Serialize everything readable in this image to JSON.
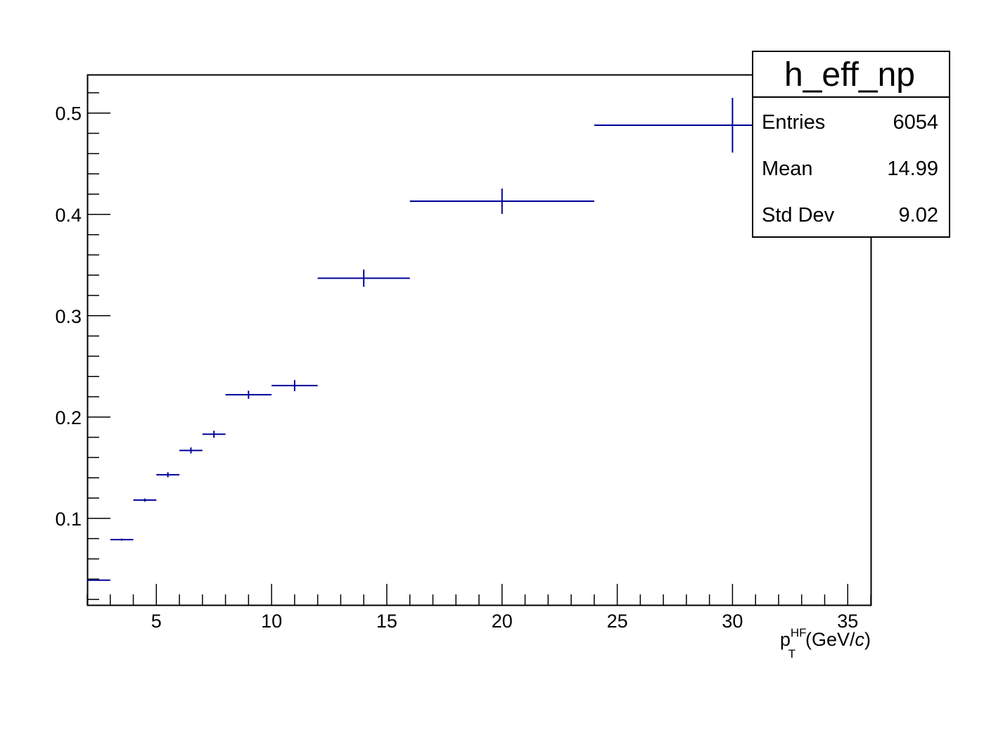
{
  "chart_data": {
    "type": "scatter",
    "style": "histogram-error-bars",
    "series": [
      {
        "color": "#000099",
        "points": [
          {
            "x": 2.5,
            "xlow": 2,
            "xhigh": 3,
            "y": 0.039,
            "yerr": 0.0006
          },
          {
            "x": 3.5,
            "xlow": 3,
            "xhigh": 4,
            "y": 0.079,
            "yerr": 0.001
          },
          {
            "x": 4.5,
            "xlow": 4,
            "xhigh": 5,
            "y": 0.118,
            "yerr": 0.0015
          },
          {
            "x": 5.5,
            "xlow": 5,
            "xhigh": 6,
            "y": 0.143,
            "yerr": 0.0025
          },
          {
            "x": 6.5,
            "xlow": 6,
            "xhigh": 7,
            "y": 0.167,
            "yerr": 0.003
          },
          {
            "x": 7.5,
            "xlow": 7,
            "xhigh": 8,
            "y": 0.183,
            "yerr": 0.0035
          },
          {
            "x": 9,
            "xlow": 8,
            "xhigh": 10,
            "y": 0.222,
            "yerr": 0.004
          },
          {
            "x": 11,
            "xlow": 10,
            "xhigh": 12,
            "y": 0.231,
            "yerr": 0.0055
          },
          {
            "x": 14,
            "xlow": 12,
            "xhigh": 16,
            "y": 0.337,
            "yerr": 0.0085
          },
          {
            "x": 20,
            "xlow": 16,
            "xhigh": 24,
            "y": 0.413,
            "yerr": 0.0125
          },
          {
            "x": 30,
            "xlow": 24,
            "xhigh": 36,
            "y": 0.488,
            "yerr": 0.027
          }
        ]
      }
    ],
    "xlim": [
      2,
      36
    ],
    "ylim": [
      0.0145,
      0.538
    ],
    "x_major_ticks": [
      5,
      10,
      15,
      20,
      25,
      30,
      35
    ],
    "x_minor_step": 1,
    "y_major_ticks": [
      0.1,
      0.2,
      0.3,
      0.4,
      0.5
    ],
    "y_minor_step": 0.02,
    "x_tick_labels": [
      "5",
      "10",
      "15",
      "20",
      "25",
      "30",
      "35"
    ],
    "y_tick_labels": [
      "0.1",
      "0.2",
      "0.3",
      "0.4",
      "0.5"
    ],
    "xlabel": {
      "base": "p",
      "superscript": "HF",
      "subscript": "T",
      "unit_prefix": "(GeV/",
      "unit_italic": "c",
      "unit_suffix": ")"
    },
    "ylabel": "",
    "grid": false
  },
  "stats_box": {
    "title": "h_eff_np",
    "rows": [
      {
        "label": "Entries",
        "value": "6054"
      },
      {
        "label": "Mean",
        "value": "14.99"
      },
      {
        "label": "Std Dev",
        "value": "9.02"
      }
    ]
  }
}
